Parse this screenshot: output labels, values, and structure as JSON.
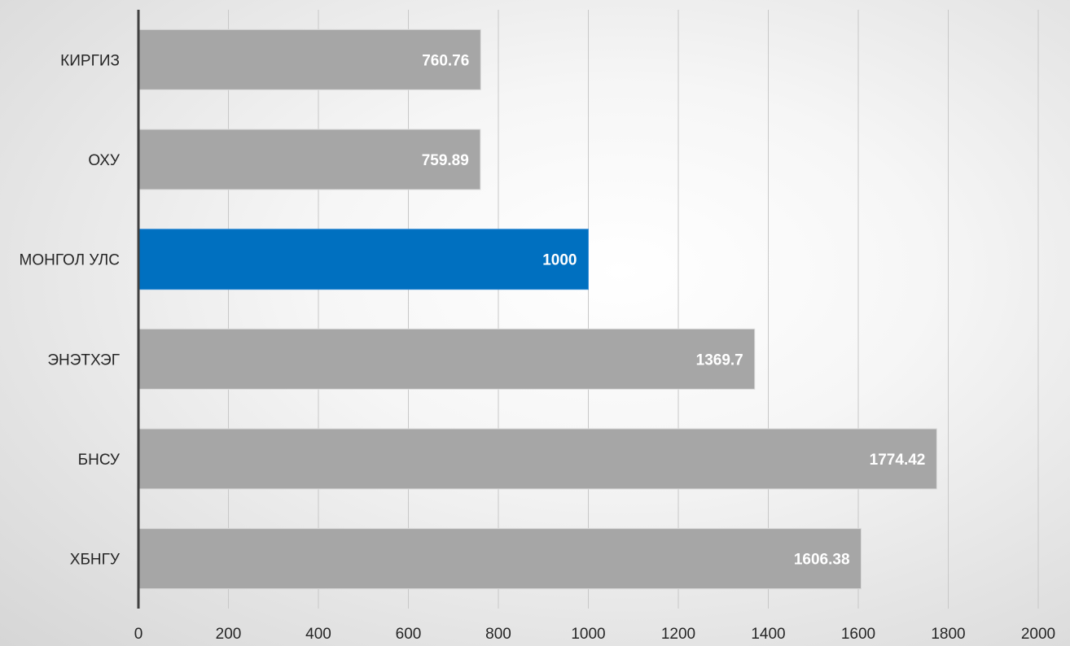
{
  "chart_data": {
    "type": "bar",
    "orientation": "horizontal",
    "categories": [
      "КИРГИЗ",
      "ОХУ",
      "МОНГОЛ УЛС",
      "ЭНЭТХЭГ",
      "БНСУ",
      "ХБНГУ"
    ],
    "values": [
      760.76,
      759.89,
      1000,
      1369.7,
      1774.42,
      1606.38
    ],
    "data_labels": [
      "760.76",
      "759.89",
      "1000",
      "1369.7",
      "1774.42",
      "1606.38"
    ],
    "highlight_category": "МОНГОЛ УЛС",
    "xlim": [
      0,
      2000
    ],
    "x_ticks": [
      0,
      200,
      400,
      600,
      800,
      1000,
      1200,
      1400,
      1600,
      1800,
      2000
    ],
    "grid": true,
    "legend": "none",
    "title": "",
    "xlabel": "",
    "ylabel": ""
  },
  "colors": {
    "bar": "#a6a6a6",
    "highlight": "#0070c0",
    "grid": "#c8c8c8",
    "axis": "#404040"
  }
}
